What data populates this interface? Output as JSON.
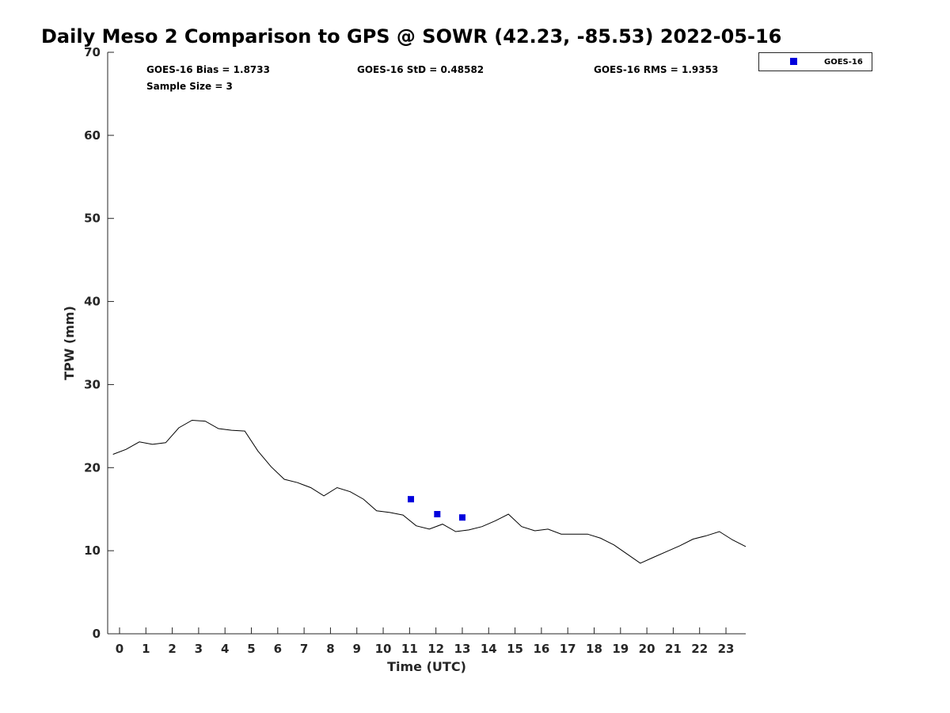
{
  "chart_data": {
    "type": "line",
    "title": "Daily Meso 2 Comparison to GPS @ SOWR (42.23, -85.53) 2022-05-16",
    "xlabel": "Time (UTC)",
    "ylabel": "TPW (mm)",
    "xlim": [
      -0.45,
      23.75
    ],
    "ylim": [
      0,
      70
    ],
    "x_ticks": [
      "0",
      "1",
      "2",
      "3",
      "4",
      "5",
      "6",
      "7",
      "8",
      "9",
      "10",
      "11",
      "12",
      "13",
      "14",
      "15",
      "16",
      "17",
      "18",
      "19",
      "20",
      "21",
      "22",
      "23"
    ],
    "y_ticks": [
      "0",
      "10",
      "20",
      "30",
      "40",
      "50",
      "60",
      "70"
    ],
    "grid": false,
    "legend_position": "top-right, outside plot area",
    "stats": {
      "bias": "GOES-16 Bias = 1.8733",
      "sample_size": "Sample Size = 3",
      "std": "GOES-16 StD = 0.48582",
      "rms": "GOES-16 RMS = 1.9353"
    },
    "series": [
      {
        "role": "gps-reference-line",
        "style": "line",
        "color": "#000000",
        "x": [
          -0.25,
          0.25,
          0.75,
          1.25,
          1.75,
          2.25,
          2.75,
          3.25,
          3.75,
          4.25,
          4.75,
          5.25,
          5.75,
          6.25,
          6.75,
          7.25,
          7.75,
          8.25,
          8.75,
          9.25,
          9.75,
          10.25,
          10.75,
          11.25,
          11.75,
          12.25,
          12.75,
          13.25,
          13.75,
          14.25,
          14.75,
          15.25,
          15.75,
          16.25,
          16.75,
          17.25,
          17.75,
          18.25,
          18.75,
          19.25,
          19.75,
          20.25,
          20.75,
          21.25,
          21.75,
          22.25,
          22.75,
          23.25,
          23.75
        ],
        "values": [
          21.6,
          22.2,
          23.1,
          22.8,
          23.0,
          24.8,
          25.7,
          25.6,
          24.7,
          24.5,
          24.4,
          22.0,
          20.1,
          18.6,
          18.2,
          17.6,
          16.6,
          17.6,
          17.1,
          16.2,
          14.8,
          14.6,
          14.3,
          13.0,
          12.6,
          13.2,
          12.3,
          12.5,
          12.9,
          13.6,
          14.4,
          12.9,
          12.4,
          12.6,
          12.0,
          12.0,
          12.0,
          11.5,
          10.7,
          9.6,
          8.5,
          9.2,
          9.9,
          10.6,
          11.4,
          11.8,
          12.3,
          11.3,
          10.5
        ]
      },
      {
        "name": "GOES-16",
        "style": "marker",
        "marker": "square",
        "color": "#0000dd",
        "x": [
          11.05,
          12.05,
          13.0
        ],
        "values": [
          16.2,
          14.4,
          14.0
        ]
      }
    ]
  }
}
